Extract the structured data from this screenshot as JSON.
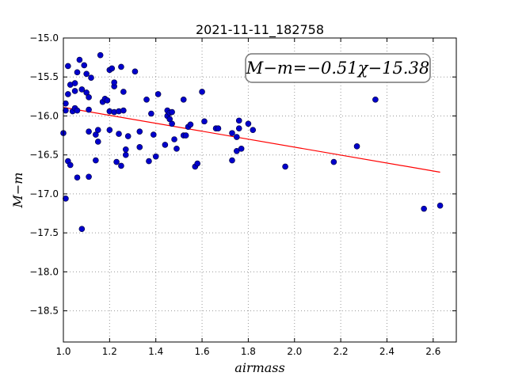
{
  "chart_data": {
    "type": "scatter",
    "title": "2021-11-11_182758",
    "xlabel": "airmass",
    "ylabel": "M−m",
    "xlim": [
      1.0,
      2.7
    ],
    "ylim": [
      -15.0,
      -18.9
    ],
    "y_inverted": true,
    "grid": true,
    "x_ticks": [
      "1.0",
      "1.2",
      "1.4",
      "1.6",
      "1.8",
      "2.0",
      "2.2",
      "2.4",
      "2.6"
    ],
    "y_ticks": [
      "−15.0",
      "−15.5",
      "−16.0",
      "−16.5",
      "−17.0",
      "−17.5",
      "−18.0",
      "−18.5"
    ],
    "annotation": "M−m=−0.51χ−15.38",
    "colors": {
      "points": "#0000cc",
      "fit": "#ff0000",
      "grid": "#999999"
    },
    "points": [
      [
        1.0,
        -16.22
      ],
      [
        1.01,
        -17.06
      ],
      [
        1.01,
        -15.93
      ],
      [
        1.01,
        -15.84
      ],
      [
        1.02,
        -15.36
      ],
      [
        1.02,
        -15.72
      ],
      [
        1.02,
        -16.58
      ],
      [
        1.03,
        -16.63
      ],
      [
        1.03,
        -15.6
      ],
      [
        1.04,
        -15.94
      ],
      [
        1.05,
        -15.68
      ],
      [
        1.05,
        -15.58
      ],
      [
        1.05,
        -15.9
      ],
      [
        1.06,
        -15.93
      ],
      [
        1.06,
        -16.79
      ],
      [
        1.06,
        -15.44
      ],
      [
        1.07,
        -15.28
      ],
      [
        1.08,
        -15.66
      ],
      [
        1.08,
        -17.45
      ],
      [
        1.09,
        -15.35
      ],
      [
        1.1,
        -15.7
      ],
      [
        1.1,
        -15.46
      ],
      [
        1.11,
        -15.76
      ],
      [
        1.11,
        -16.2
      ],
      [
        1.11,
        -15.92
      ],
      [
        1.11,
        -16.78
      ],
      [
        1.12,
        -15.51
      ],
      [
        1.14,
        -16.57
      ],
      [
        1.14,
        -16.24
      ],
      [
        1.15,
        -16.33
      ],
      [
        1.15,
        -16.18
      ],
      [
        1.16,
        -15.22
      ],
      [
        1.17,
        -15.82
      ],
      [
        1.18,
        -15.78
      ],
      [
        1.19,
        -15.8
      ],
      [
        1.2,
        -15.41
      ],
      [
        1.2,
        -15.94
      ],
      [
        1.2,
        -16.18
      ],
      [
        1.21,
        -15.39
      ],
      [
        1.22,
        -15.62
      ],
      [
        1.22,
        -15.57
      ],
      [
        1.22,
        -15.95
      ],
      [
        1.23,
        -16.59
      ],
      [
        1.24,
        -15.94
      ],
      [
        1.24,
        -16.23
      ],
      [
        1.25,
        -15.37
      ],
      [
        1.25,
        -16.64
      ],
      [
        1.26,
        -15.69
      ],
      [
        1.26,
        -15.93
      ],
      [
        1.27,
        -16.5
      ],
      [
        1.27,
        -16.43
      ],
      [
        1.28,
        -16.26
      ],
      [
        1.31,
        -15.43
      ],
      [
        1.33,
        -16.2
      ],
      [
        1.33,
        -16.4
      ],
      [
        1.36,
        -15.79
      ],
      [
        1.37,
        -16.58
      ],
      [
        1.38,
        -15.97
      ],
      [
        1.39,
        -16.24
      ],
      [
        1.4,
        -16.52
      ],
      [
        1.41,
        -15.72
      ],
      [
        1.44,
        -16.37
      ],
      [
        1.45,
        -15.93
      ],
      [
        1.45,
        -16.0
      ],
      [
        1.46,
        -15.96
      ],
      [
        1.46,
        -16.04
      ],
      [
        1.47,
        -15.95
      ],
      [
        1.47,
        -16.1
      ],
      [
        1.48,
        -16.3
      ],
      [
        1.49,
        -16.42
      ],
      [
        1.52,
        -16.25
      ],
      [
        1.52,
        -15.79
      ],
      [
        1.53,
        -16.25
      ],
      [
        1.54,
        -16.14
      ],
      [
        1.55,
        -16.11
      ],
      [
        1.57,
        -16.65
      ],
      [
        1.58,
        -16.61
      ],
      [
        1.6,
        -15.69
      ],
      [
        1.61,
        -16.07
      ],
      [
        1.66,
        -16.16
      ],
      [
        1.67,
        -16.16
      ],
      [
        1.73,
        -16.22
      ],
      [
        1.73,
        -16.57
      ],
      [
        1.75,
        -16.45
      ],
      [
        1.75,
        -16.27
      ],
      [
        1.76,
        -16.06
      ],
      [
        1.76,
        -16.16
      ],
      [
        1.77,
        -16.42
      ],
      [
        1.8,
        -16.1
      ],
      [
        1.82,
        -16.18
      ],
      [
        1.96,
        -16.65
      ],
      [
        2.17,
        -16.59
      ],
      [
        2.27,
        -16.39
      ],
      [
        2.35,
        -15.79
      ],
      [
        2.56,
        -17.19
      ],
      [
        2.63,
        -17.15
      ]
    ],
    "fit": {
      "slope": -0.51,
      "intercept": -15.38,
      "x_range": [
        1.0,
        2.63
      ]
    }
  }
}
